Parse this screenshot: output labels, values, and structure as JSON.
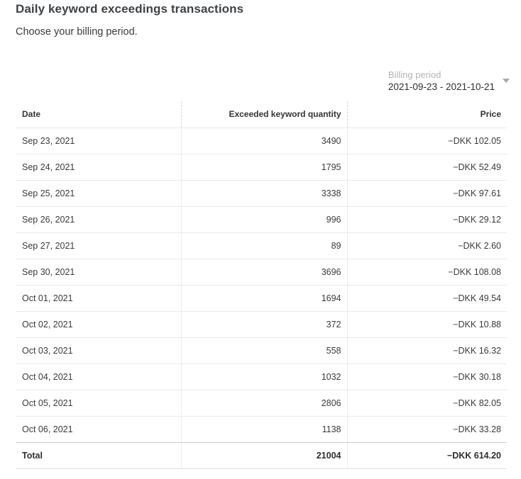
{
  "page": {
    "title": "Daily keyword exceedings transactions",
    "subtitle": "Choose your billing period."
  },
  "billing_period": {
    "label": "Billing period",
    "value": "2021-09-23 - 2021-10-21",
    "icon": "chevron-down-icon"
  },
  "table": {
    "columns": [
      "Date",
      "Exceeded keyword quantity",
      "Price"
    ],
    "rows": [
      {
        "date": "Sep 23, 2021",
        "quantity": "3490",
        "price": "−DKK 102.05"
      },
      {
        "date": "Sep 24, 2021",
        "quantity": "1795",
        "price": "−DKK 52.49"
      },
      {
        "date": "Sep 25, 2021",
        "quantity": "3338",
        "price": "−DKK 97.61"
      },
      {
        "date": "Sep 26, 2021",
        "quantity": "996",
        "price": "−DKK 29.12"
      },
      {
        "date": "Sep 27, 2021",
        "quantity": "89",
        "price": "−DKK 2.60"
      },
      {
        "date": "Sep 30, 2021",
        "quantity": "3696",
        "price": "−DKK 108.08"
      },
      {
        "date": "Oct 01, 2021",
        "quantity": "1694",
        "price": "−DKK 49.54"
      },
      {
        "date": "Oct 02, 2021",
        "quantity": "372",
        "price": "−DKK 10.88"
      },
      {
        "date": "Oct 03, 2021",
        "quantity": "558",
        "price": "−DKK 16.32"
      },
      {
        "date": "Oct 04, 2021",
        "quantity": "1032",
        "price": "−DKK 30.18"
      },
      {
        "date": "Oct 05, 2021",
        "quantity": "2806",
        "price": "−DKK 82.05"
      },
      {
        "date": "Oct 06, 2021",
        "quantity": "1138",
        "price": "−DKK 33.28"
      }
    ],
    "total": {
      "label": "Total",
      "quantity": "21004",
      "price": "−DKK 614.20"
    }
  }
}
